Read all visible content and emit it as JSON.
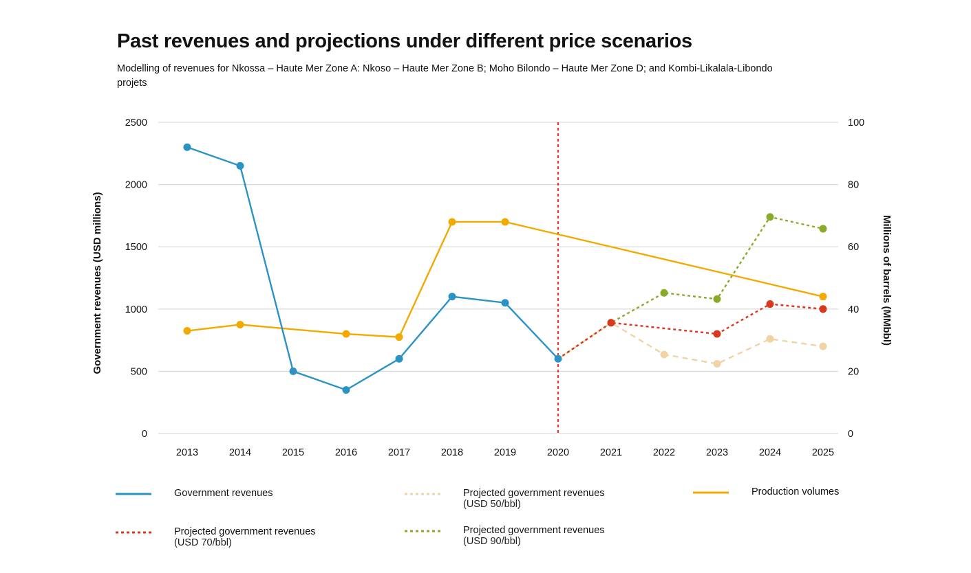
{
  "title": "Past revenues and projections under different price scenarios",
  "subtitle": "Modelling of revenues for Nkossa – Haute Mer Zone A: Nkoso – Haute Mer Zone B; Moho Bilondo – Haute Mer Zone D; and Kombi-Likalala-Libondo projets",
  "chart_data": {
    "type": "line",
    "title": "Past revenues and projections under different price scenarios",
    "ylabel": "Government revenues (USD millions)",
    "y2label": "Millions of barrels (MMbbl)",
    "xlabel": "",
    "ylim": [
      0,
      2500
    ],
    "y2lim": [
      0,
      100
    ],
    "yticks": [
      "0",
      "500",
      "1000",
      "1500",
      "2000",
      "2500"
    ],
    "y2ticks": [
      "0",
      "20",
      "40",
      "60",
      "80",
      "100"
    ],
    "categories": [
      "2013",
      "2014",
      "2015",
      "2016",
      "2017",
      "2018",
      "2019",
      "2020",
      "2021",
      "2022",
      "2023",
      "2024",
      "2025"
    ],
    "grid": true,
    "legend_position": "bottom",
    "marker_line_year": "2020",
    "series": [
      {
        "name": "Government revenues",
        "axis": "left",
        "style": "solid",
        "color": "#2b93c4",
        "x": [
          "2013",
          "2014",
          "2015",
          "2016",
          "2017",
          "2018",
          "2019",
          "2020"
        ],
        "values": [
          2300,
          2150,
          500,
          350,
          600,
          1100,
          1050,
          600
        ]
      },
      {
        "name": "Projected government revenues",
        "sub": "(USD 50/bbl)",
        "axis": "left",
        "style": "dashed",
        "color": "#f0d3a6",
        "x": [
          "2020",
          "2021",
          "2022",
          "2023",
          "2024",
          "2025"
        ],
        "values": [
          600,
          890,
          635,
          560,
          760,
          700
        ]
      },
      {
        "name": "Production volumes",
        "axis": "right",
        "style": "solid",
        "color": "#f2a900",
        "x": [
          "2013",
          "2014",
          "2016",
          "2017",
          "2018",
          "2019",
          "2025"
        ],
        "values": [
          33,
          35,
          32,
          31,
          68,
          68,
          44
        ]
      },
      {
        "name": "Projected government revenues",
        "sub": "(USD 70/bbl)",
        "axis": "left",
        "style": "dotted",
        "color": "#d6391e",
        "x": [
          "2020",
          "2021",
          "2023",
          "2024",
          "2025"
        ],
        "values": [
          600,
          890,
          800,
          1040,
          1000
        ]
      },
      {
        "name": "Projected government revenues",
        "sub": "(USD 90/bbl)",
        "axis": "left",
        "style": "dotted",
        "color": "#8aab2a",
        "x": [
          "2020",
          "2021",
          "2022",
          "2023",
          "2024",
          "2025"
        ],
        "values": [
          600,
          890,
          1130,
          1080,
          1740,
          1645
        ]
      }
    ]
  }
}
